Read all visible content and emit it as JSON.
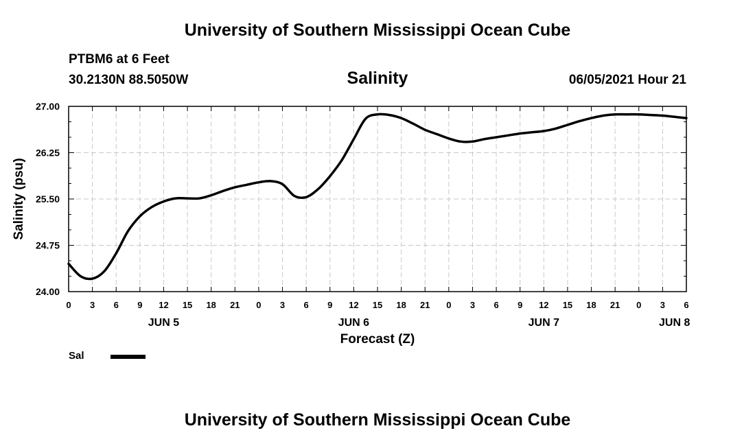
{
  "header": {
    "organization": "University of Southern Mississippi Ocean Cube",
    "station": "PTBM6 at 6 Feet",
    "coordinates": "30.2130N  88.5050W",
    "timestamp": "06/05/2021 Hour 21"
  },
  "footer": {
    "organization": "University of Southern Mississippi Ocean Cube"
  },
  "chart_data": {
    "type": "line",
    "title": "Salinity",
    "xlabel": "Forecast (Z)",
    "ylabel": "Salinity (psu)",
    "ylim": [
      24.0,
      27.0
    ],
    "xlim": [
      0,
      78
    ],
    "grid": true,
    "yticks": [
      24.0,
      24.75,
      25.5,
      26.25,
      27.0
    ],
    "ytick_labels": [
      "24.00",
      "24.75",
      "25.50",
      "26.25",
      "27.00"
    ],
    "xtick_labels": [
      "0",
      "3",
      "6",
      "9",
      "12",
      "15",
      "18",
      "21",
      "0",
      "3",
      "6",
      "9",
      "12",
      "15",
      "18",
      "21",
      "0",
      "3",
      "6",
      "9",
      "12",
      "15",
      "18",
      "21",
      "0",
      "3",
      "6"
    ],
    "date_labels": [
      {
        "label": "JUN 5",
        "hour": 12
      },
      {
        "label": "JUN 6",
        "hour": 36
      },
      {
        "label": "JUN 7",
        "hour": 60
      },
      {
        "label": "JUN 8",
        "hour": 76.5
      }
    ],
    "legend": [
      {
        "name": "Sal",
        "color": "#000000"
      }
    ],
    "series": [
      {
        "name": "Sal",
        "x": [
          0,
          1.5,
          3,
          4.5,
          6,
          7.5,
          9,
          10.5,
          12,
          13.5,
          15,
          16.5,
          18,
          19.5,
          21,
          22.5,
          24,
          25.5,
          27,
          28.5,
          30,
          31.5,
          33,
          34.5,
          36,
          37.5,
          39,
          40.5,
          42,
          43.5,
          45,
          46.5,
          48,
          49.5,
          51,
          52.5,
          54,
          55.5,
          57,
          58.5,
          60,
          61.5,
          63,
          64.5,
          66,
          67.5,
          69,
          70.5,
          72,
          73.5,
          75,
          76.5,
          78
        ],
        "values": [
          24.45,
          24.25,
          24.21,
          24.33,
          24.62,
          24.98,
          25.22,
          25.37,
          25.46,
          25.51,
          25.51,
          25.51,
          25.56,
          25.63,
          25.69,
          25.73,
          25.77,
          25.79,
          25.74,
          25.55,
          25.53,
          25.66,
          25.87,
          26.13,
          26.47,
          26.8,
          26.87,
          26.86,
          26.81,
          26.72,
          26.62,
          26.55,
          26.48,
          26.43,
          26.43,
          26.47,
          26.5,
          26.53,
          26.56,
          26.58,
          26.6,
          26.64,
          26.7,
          26.76,
          26.81,
          26.85,
          26.87,
          26.87,
          26.87,
          26.86,
          26.85,
          26.83,
          26.81
        ]
      }
    ]
  }
}
